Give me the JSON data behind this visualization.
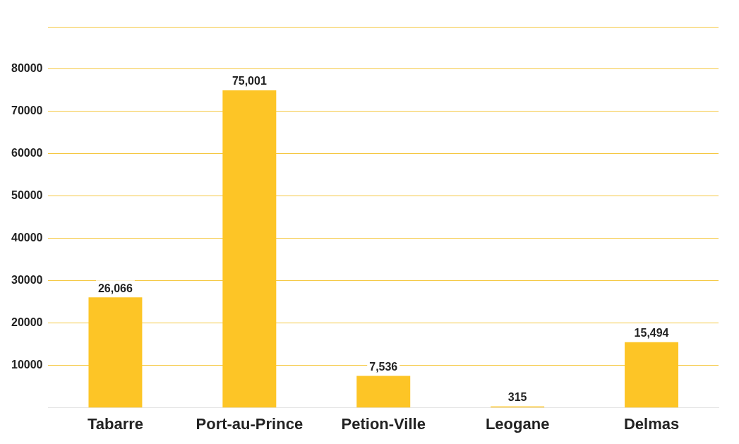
{
  "chart_data": {
    "type": "bar",
    "categories": [
      "Tabarre",
      "Port-au-Prince",
      "Petion-Ville",
      "Leogane",
      "Delmas"
    ],
    "values": [
      26066,
      75001,
      7536,
      315,
      15494
    ],
    "value_labels": [
      "26,066",
      "75,001",
      "7,536",
      "315",
      "15,494"
    ],
    "color": "#fdc526",
    "ylim": [
      0,
      90000
    ],
    "yticks": [
      10000,
      20000,
      30000,
      40000,
      50000,
      60000,
      70000,
      80000,
      {
        "value": 90000,
        "label": null
      }
    ],
    "grid": "y",
    "legend": false
  }
}
